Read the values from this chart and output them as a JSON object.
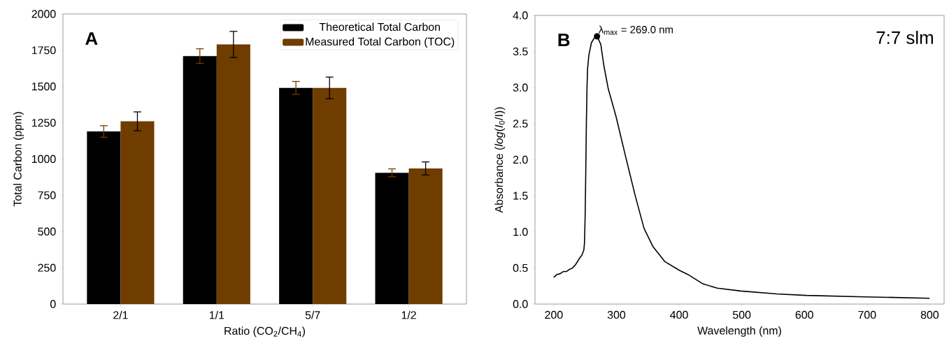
{
  "chart_data": [
    {
      "type": "bar",
      "xlabel": "Ratio (CO$_{2}$/CH$_{4}$)",
      "ylabel": "Total Carbon (ppm)",
      "categories": [
        "2/1",
        "1/1",
        "5/7",
        "1/2"
      ],
      "series": [
        {
          "name": "Theoretical Total Carbon",
          "color": "#000000",
          "values": [
            1190,
            1710,
            1490,
            905
          ],
          "errors": [
            40,
            50,
            45,
            27
          ]
        },
        {
          "name": "Measured Total Carbon (TOC)",
          "color": "#6f3d00",
          "values": [
            1260,
            1790,
            1490,
            935
          ],
          "errors": [
            65,
            90,
            75,
            45
          ]
        }
      ],
      "ylim": [
        0,
        2000
      ],
      "yticks": [
        0,
        250,
        500,
        750,
        1000,
        1250,
        1500,
        1750,
        2000
      ],
      "grid": false,
      "legend": "top right",
      "annotations": [
        "A"
      ]
    },
    {
      "type": "line",
      "xlabel": "Wavelength (nm)",
      "ylabel": "Absorbance (*log*(*I*$_{0}$/I))",
      "x": [
        200,
        205,
        210,
        215,
        220,
        225,
        230,
        235,
        240,
        245,
        248,
        249,
        250,
        251,
        252,
        253,
        254,
        256,
        260,
        264,
        269,
        275,
        280,
        287,
        299,
        315,
        330,
        344,
        358,
        377,
        400,
        414,
        438,
        461,
        499,
        556,
        603,
        697,
        800
      ],
      "series": [
        {
          "color": "#000000",
          "values": [
            0.37,
            0.41,
            0.42,
            0.45,
            0.45,
            0.48,
            0.5,
            0.55,
            0.62,
            0.68,
            0.75,
            0.85,
            1.2,
            1.8,
            2.5,
            3.0,
            3.27,
            3.45,
            3.62,
            3.68,
            3.71,
            3.6,
            3.3,
            2.98,
            2.61,
            2.03,
            1.5,
            1.05,
            0.8,
            0.59,
            0.47,
            0.41,
            0.28,
            0.22,
            0.18,
            0.14,
            0.12,
            0.1,
            0.08
          ]
        }
      ],
      "xlim": [
        170,
        823
      ],
      "ylim": [
        0,
        4
      ],
      "xticks": [
        200,
        300,
        400,
        500,
        600,
        700,
        800
      ],
      "yticks": [
        {
          "value": 0,
          "label": "0.0"
        },
        {
          "value": 0.5,
          "label": "0.5"
        },
        {
          "value": 1,
          "label": "1.0"
        },
        {
          "value": 1.5,
          "label": "1.5"
        },
        {
          "value": 2,
          "label": "2.0"
        },
        {
          "value": 2.5,
          "label": "2.5"
        },
        {
          "value": 3,
          "label": "3.0"
        },
        {
          "value": 3.5,
          "label": "3.5"
        },
        {
          "value": 4,
          "label": "4.0"
        }
      ],
      "grid": false,
      "legend": false,
      "marker": "none",
      "line_style": "solid",
      "annotations": [
        "B",
        {
          "text": "λ$_{max}$ = 269.0 nm",
          "x": 269,
          "y": 3.71
        },
        "7:7 slm"
      ]
    }
  ]
}
